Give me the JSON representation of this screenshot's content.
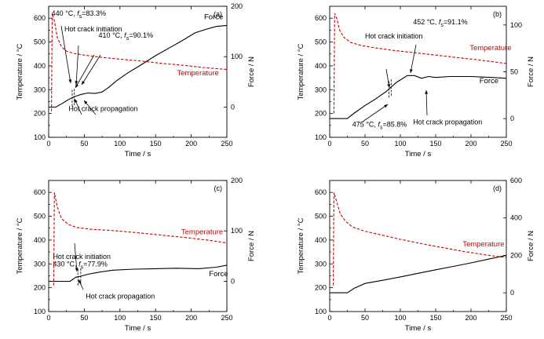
{
  "colors": {
    "force": "#000000",
    "temperature": "#cc0000",
    "axis": "#000000"
  },
  "chart_data": [
    {
      "type": "line",
      "panel_label": "(a)",
      "xlabel": "Time / s",
      "ylabel": "Temperature / °C",
      "y2label": "Force / N",
      "xlim": [
        0,
        250
      ],
      "ylim": [
        100,
        650
      ],
      "y2lim": [
        -60,
        200
      ],
      "xticks": [
        0,
        50,
        100,
        150,
        200,
        250
      ],
      "yticks": [
        100,
        200,
        300,
        400,
        500,
        600
      ],
      "y2ticks": [
        0,
        100,
        200
      ],
      "series": [
        {
          "name": "Force",
          "axis": "y2",
          "style": "solid",
          "x": [
            0,
            10,
            20,
            28,
            35,
            45,
            55,
            65,
            75,
            85,
            95,
            110,
            130,
            150,
            170,
            190,
            205,
            220,
            235,
            250
          ],
          "y": [
            0,
            0,
            8,
            15,
            20,
            25,
            28,
            27,
            30,
            40,
            52,
            67,
            84,
            102,
            118,
            134,
            147,
            154,
            160,
            162
          ]
        },
        {
          "name": "Temperature",
          "axis": "y",
          "style": "dashed",
          "x": [
            4,
            5,
            8,
            12,
            18,
            25,
            35,
            50,
            70,
            100,
            130,
            160,
            190,
            220,
            250
          ],
          "y": [
            210,
            620,
            590,
            520,
            480,
            462,
            452,
            445,
            437,
            428,
            420,
            410,
            402,
            392,
            385
          ]
        }
      ],
      "annotations": [
        {
          "text": "440 °C, ",
          "fs": "83.3%",
          "at": [
            4,
            610
          ]
        },
        {
          "text": "Hot crack initiation",
          "at": [
            22,
            545
          ]
        },
        {
          "text": "410 °C, ",
          "fs": "90.1%",
          "at": [
            70,
            518
          ]
        },
        {
          "text": "Hot crack propagation",
          "at": [
            28,
            210
          ]
        }
      ],
      "markers": [
        33,
        36
      ]
    },
    {
      "type": "line",
      "panel_label": "(b)",
      "xlabel": "Time / s",
      "ylabel": "Temperature / °C",
      "y2label": "Force / N",
      "xlim": [
        0,
        250
      ],
      "ylim": [
        100,
        650
      ],
      "y2lim": [
        -20,
        120
      ],
      "xticks": [
        0,
        50,
        100,
        150,
        200,
        250
      ],
      "yticks": [
        100,
        200,
        300,
        400,
        500,
        600
      ],
      "y2ticks": [
        0,
        50,
        100
      ],
      "series": [
        {
          "name": "Force",
          "axis": "y2",
          "style": "solid",
          "x": [
            0,
            25,
            35,
            50,
            65,
            80,
            95,
            110,
            120,
            130,
            140,
            150,
            170,
            200,
            230,
            250
          ],
          "y": [
            0,
            0,
            6,
            14,
            21,
            29,
            39,
            46,
            46,
            43,
            45,
            44,
            45,
            45,
            44,
            43
          ]
        },
        {
          "name": "Temperature",
          "axis": "y",
          "style": "dashed",
          "x": [
            6,
            7,
            10,
            14,
            20,
            30,
            45,
            65,
            90,
            120,
            150,
            180,
            210,
            250
          ],
          "y": [
            200,
            620,
            600,
            550,
            520,
            498,
            485,
            475,
            465,
            455,
            445,
            435,
            425,
            410
          ]
        }
      ],
      "annotations": [
        {
          "text": "452 °C, ",
          "fs": "91.1%",
          "at": [
            118,
            575
          ]
        },
        {
          "text": "Hot crack initiation",
          "at": [
            50,
            515
          ]
        },
        {
          "text": "Temperature",
          "at": [
            198,
            465
          ]
        },
        {
          "text": "475 °C, ",
          "fs": "85.8%",
          "at": [
            32,
            145
          ]
        },
        {
          "text": "Hot crack propagation",
          "at": [
            118,
            155
          ]
        }
      ],
      "markers": [
        84,
        87
      ]
    },
    {
      "type": "line",
      "panel_label": "(c)",
      "xlabel": "Time / s",
      "ylabel": "Temperature / °C",
      "y2label": "Force / N",
      "xlim": [
        0,
        250
      ],
      "ylim": [
        100,
        650
      ],
      "y2lim": [
        -60,
        200
      ],
      "xticks": [
        0,
        50,
        100,
        150,
        200,
        250
      ],
      "yticks": [
        100,
        200,
        300,
        400,
        500,
        600
      ],
      "y2ticks": [
        0,
        100,
        200
      ],
      "series": [
        {
          "name": "Force",
          "axis": "y2",
          "style": "solid",
          "x": [
            0,
            30,
            38,
            45,
            55,
            70,
            90,
            120,
            150,
            180,
            210,
            235,
            250
          ],
          "y": [
            0,
            0,
            8,
            10,
            14,
            18,
            22,
            24,
            25,
            26,
            25,
            28,
            32
          ]
        },
        {
          "name": "Temperature",
          "axis": "y",
          "style": "dashed",
          "x": [
            7,
            8,
            12,
            18,
            28,
            40,
            60,
            90,
            120,
            160,
            200,
            230,
            250
          ],
          "y": [
            210,
            600,
            540,
            490,
            465,
            452,
            445,
            440,
            432,
            420,
            408,
            397,
            388
          ]
        }
      ],
      "annotations": [
        {
          "text": "Hot crack initiation",
          "at": [
            6,
            320
          ]
        },
        {
          "text": "430 °C, ",
          "fs": "77.9%",
          "at": [
            6,
            290
          ]
        },
        {
          "text": "Temperature",
          "at": [
            186,
            425
          ]
        },
        {
          "text": "Force",
          "at": [
            225,
            248
          ]
        },
        {
          "text": "Hot crack propagation",
          "at": [
            52,
            155
          ]
        }
      ],
      "markers": [
        41,
        45
      ]
    },
    {
      "type": "line",
      "panel_label": "(d)",
      "xlabel": "Time / s",
      "ylabel": "Temperature / °C",
      "y2label": "Force / N",
      "xlim": [
        0,
        250
      ],
      "ylim": [
        100,
        650
      ],
      "y2lim": [
        -100,
        600
      ],
      "xticks": [
        0,
        50,
        100,
        150,
        200,
        250
      ],
      "yticks": [
        100,
        200,
        300,
        400,
        500,
        600
      ],
      "y2ticks": [
        0,
        200,
        400,
        600
      ],
      "series": [
        {
          "name": "Force",
          "axis": "y2",
          "style": "solid",
          "x": [
            0,
            25,
            35,
            50,
            75,
            100,
            125,
            150,
            175,
            200,
            225,
            250
          ],
          "y": [
            0,
            0,
            25,
            50,
            67,
            85,
            104,
            123,
            141,
            160,
            180,
            200
          ]
        },
        {
          "name": "Temperature",
          "axis": "y",
          "style": "dashed",
          "x": [
            5,
            6,
            10,
            15,
            22,
            32,
            50,
            75,
            100,
            130,
            160,
            190,
            220,
            240,
            250
          ],
          "y": [
            210,
            600,
            560,
            510,
            480,
            455,
            437,
            420,
            403,
            385,
            368,
            352,
            338,
            330,
            327
          ]
        }
      ],
      "annotations": [
        {
          "text": "Temperature",
          "at": [
            188,
            373
          ]
        }
      ],
      "markers": []
    }
  ]
}
